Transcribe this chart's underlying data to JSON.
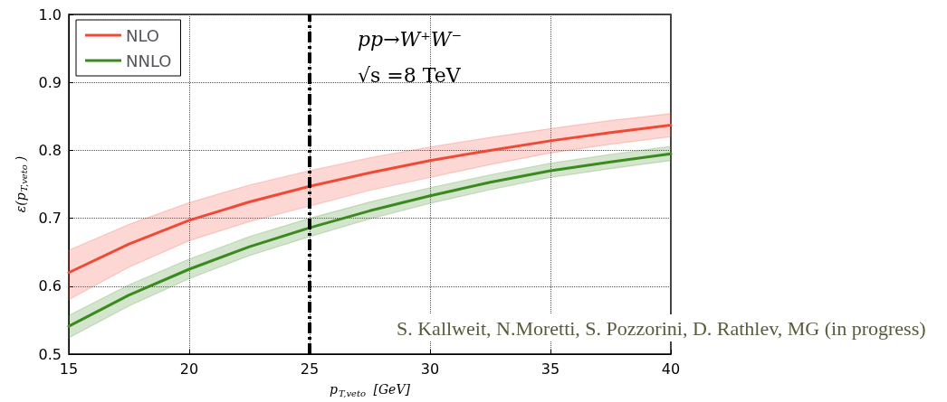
{
  "chart_data": {
    "type": "line",
    "xlabel": "p$_{T,veto}$ [GeV]",
    "ylabel": "ε(p$_{T,veto}$)",
    "x": [
      15,
      17.5,
      20,
      22.5,
      25,
      27.5,
      30,
      32.5,
      35,
      37.5,
      40
    ],
    "series": [
      {
        "name": "NLO",
        "color": "#f04a36",
        "values": [
          0.62,
          0.662,
          0.697,
          0.724,
          0.747,
          0.767,
          0.785,
          0.8,
          0.814,
          0.826,
          0.837
        ],
        "lower": [
          0.58,
          0.628,
          0.667,
          0.695,
          0.718,
          0.741,
          0.76,
          0.779,
          0.796,
          0.809,
          0.82
        ],
        "upper": [
          0.653,
          0.691,
          0.723,
          0.749,
          0.77,
          0.789,
          0.805,
          0.819,
          0.832,
          0.844,
          0.854
        ]
      },
      {
        "name": "NNLO",
        "color": "#3a8a1e",
        "values": [
          0.541,
          0.587,
          0.625,
          0.658,
          0.686,
          0.711,
          0.733,
          0.753,
          0.77,
          0.783,
          0.795
        ],
        "lower": [
          0.524,
          0.571,
          0.611,
          0.645,
          0.673,
          0.699,
          0.722,
          0.742,
          0.76,
          0.773,
          0.785
        ],
        "upper": [
          0.557,
          0.602,
          0.64,
          0.673,
          0.7,
          0.724,
          0.745,
          0.764,
          0.781,
          0.794,
          0.806
        ]
      }
    ],
    "xlim": [
      15,
      40
    ],
    "xticks": [
      15,
      20,
      25,
      30,
      35,
      40
    ],
    "ylim": [
      0.5,
      1.0
    ],
    "yticks": [
      0.5,
      0.6,
      0.7,
      0.8,
      0.9,
      {
        "value": 1.0,
        "label": "1.0"
      }
    ],
    "ref_lines": [
      {
        "axis": "x",
        "value": 25,
        "color": "#000000",
        "line_style": "dashed"
      }
    ],
    "annotations": [
      "pp→W⁺W⁻",
      "√s =8 TeV",
      "S. Kallweit, N.Moretti, S. Pozzorini, D. Rathlev, MG (in progress)"
    ],
    "grid": true,
    "legend": "top left",
    "marker": "none",
    "line_style": "solid"
  }
}
